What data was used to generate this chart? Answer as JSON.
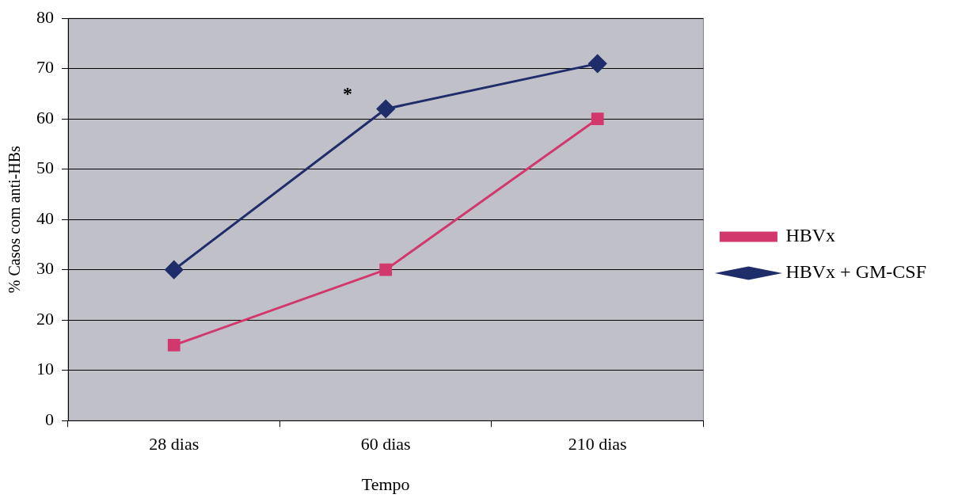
{
  "chart_data": {
    "type": "line",
    "xlabel": "Tempo",
    "ylabel": "% Casos com anti-HBs",
    "categories": [
      "28 dias",
      "60 dias",
      "210 dias"
    ],
    "series": [
      {
        "name": "HBVx",
        "color": "#d2386c",
        "values": [
          15,
          30,
          60
        ],
        "marker": "square"
      },
      {
        "name": "HBVx + GM-CSF",
        "color": "#1f2d6a",
        "values": [
          30,
          62,
          71
        ],
        "marker": "diamond"
      }
    ],
    "ylim": [
      0,
      80
    ],
    "yticks": [
      0,
      10,
      20,
      30,
      40,
      50,
      60,
      70,
      80
    ],
    "grid": "y",
    "legend": "right",
    "annotations": [
      "*"
    ]
  }
}
